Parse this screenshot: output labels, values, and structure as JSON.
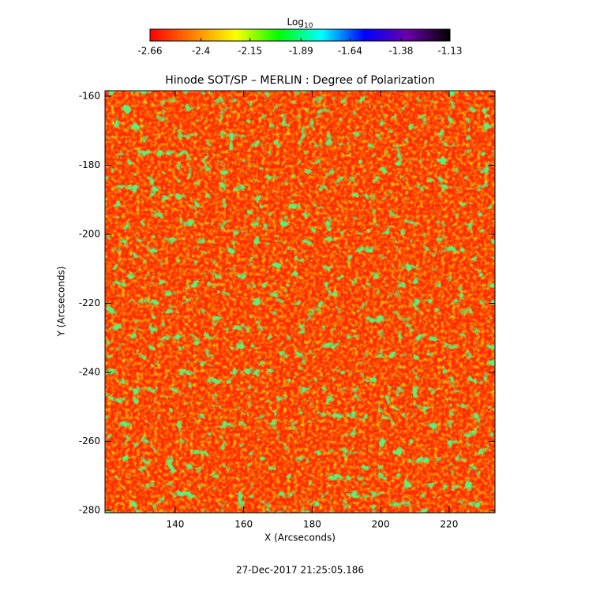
{
  "chart_data": {
    "type": "heatmap",
    "title": "Hinode SOT/SP – MERLIN : Degree of Polarization",
    "xlabel": "X (Arcseconds)",
    "ylabel": "Y (Arcseconds)",
    "xlim": [
      119.5,
      233.4
    ],
    "ylim": [
      -280.7,
      -158.4
    ],
    "xticks": [
      140,
      160,
      180,
      200,
      220
    ],
    "yticks": [
      -280,
      -260,
      -240,
      -220,
      -200,
      -180,
      -160
    ],
    "colorbar": {
      "label": "Log",
      "label_subscript": "10",
      "clim": [
        -2.66,
        -1.13
      ],
      "ticks": [
        -2.66,
        -2.4,
        -2.15,
        -1.89,
        -1.64,
        -1.38,
        -1.13
      ],
      "colormap": [
        "#ff0000",
        "#ff7f00",
        "#ffff00",
        "#00ff00",
        "#00ffff",
        "#0000ff",
        "#6a00a8",
        "#000000"
      ]
    },
    "footer": "27-Dec-2017 21:25:05.186"
  }
}
